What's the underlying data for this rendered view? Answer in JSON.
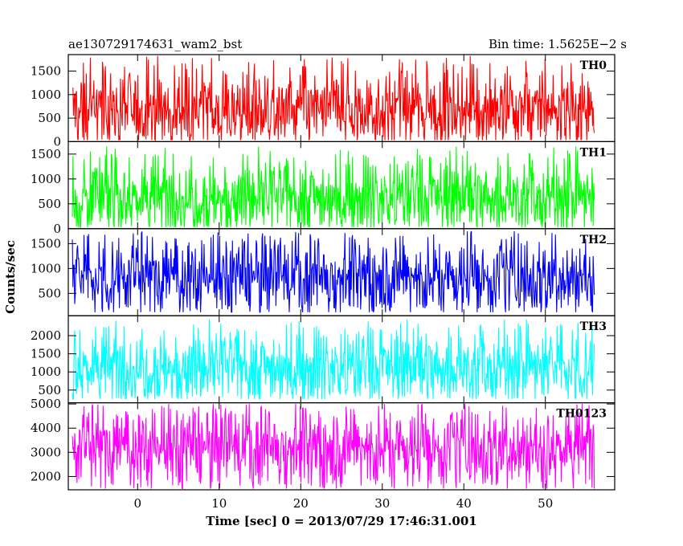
{
  "header": {
    "left_title": "ae130729174631_wam2_bst",
    "right_title": "Bin time: 1.5625E−2 s"
  },
  "chart_data": {
    "type": "line",
    "xlabel": "Time [sec] 0 = 2013/07/29 17:46:31.001",
    "ylabel": "Counts/sec",
    "xlim": [
      -8.5,
      58.5
    ],
    "x_ticks": [
      0,
      10,
      20,
      30,
      40,
      50
    ],
    "x_tick_labels": [
      "0",
      "10",
      "20",
      "30",
      "40",
      "50"
    ],
    "data_x_range": [
      -8,
      56
    ],
    "bin_time": 0.015625,
    "panels": [
      {
        "name": "TH0",
        "color": "#ff0000",
        "ylim": [
          0,
          1850
        ],
        "yticks": [
          0,
          500,
          1000,
          1500
        ],
        "ytick_labels": [
          "0",
          "500",
          "1000",
          "1500"
        ],
        "mean": 700,
        "min": 30,
        "max": 1820
      },
      {
        "name": "TH1",
        "color": "#00ff00",
        "ylim": [
          0,
          1750
        ],
        "yticks": [
          0,
          500,
          1000,
          1500
        ],
        "ytick_labels": [
          "0",
          "500",
          "1000",
          "1500"
        ],
        "mean": 650,
        "min": 30,
        "max": 1650
      },
      {
        "name": "TH2",
        "color": "#0000ff",
        "ylim": [
          50,
          1800
        ],
        "yticks": [
          500,
          1000,
          1500
        ],
        "ytick_labels": [
          "500",
          "1000",
          "1500"
        ],
        "mean": 850,
        "min": 120,
        "max": 1750
      },
      {
        "name": "TH3",
        "color": "#00ffff",
        "ylim": [
          150,
          2550
        ],
        "yticks": [
          500,
          1000,
          1500,
          2000
        ],
        "ytick_labels": [
          "500",
          "1000",
          "1500",
          "2000"
        ],
        "mean": 1150,
        "min": 250,
        "max": 2450
      },
      {
        "name": "TH0123",
        "color": "#ff00ff",
        "ylim": [
          1450,
          5050
        ],
        "yticks": [
          2000,
          3000,
          4000,
          5000
        ],
        "ytick_labels": [
          "2000",
          "3000",
          "4000",
          "5000"
        ],
        "mean": 3250,
        "min": 1500,
        "max": 5000
      }
    ]
  }
}
